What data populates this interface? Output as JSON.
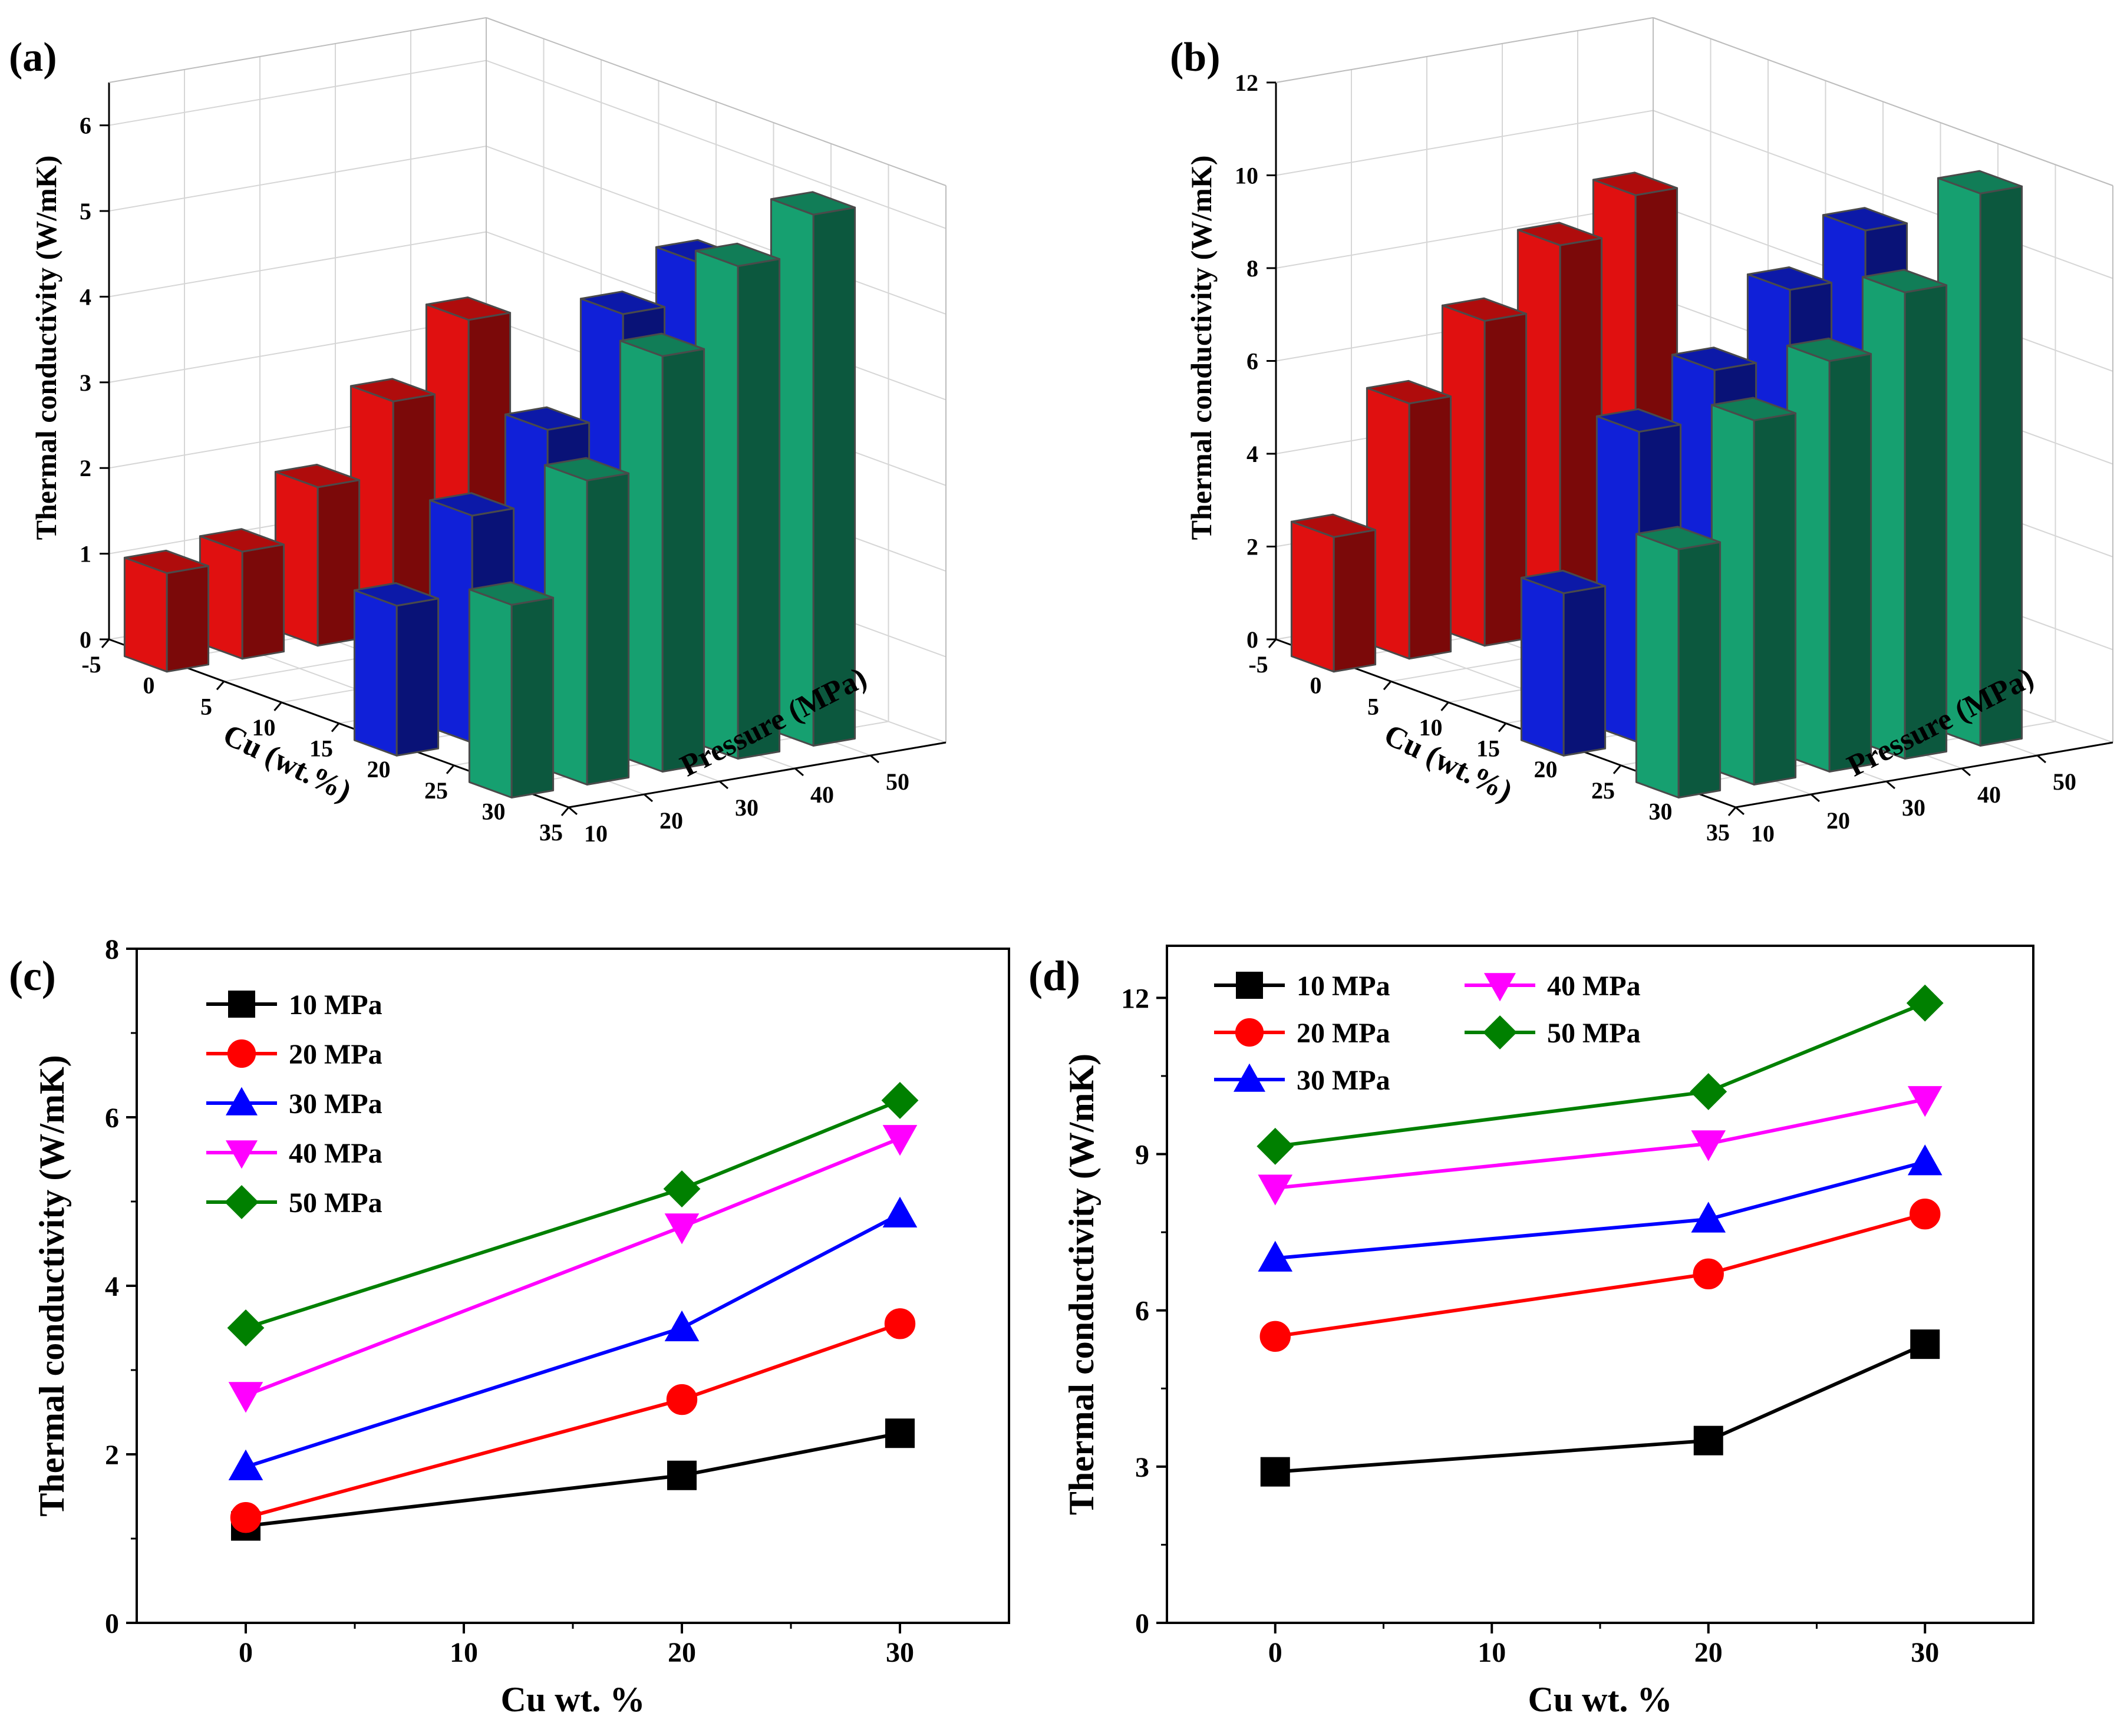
{
  "chart_data": [
    {
      "panel": "(a)",
      "type": "bar3d",
      "ylabel": "Thermal conductivity (W/mK)",
      "xlabel": "Cu (wt.%)",
      "zlabel": "Pressure (MPa)",
      "zlim": [
        0,
        6.5
      ],
      "zticks": [
        "0",
        "1",
        "2",
        "3",
        "4",
        "5",
        "6"
      ],
      "cu_ticks": [
        "-5",
        "0",
        "5",
        "10",
        "15",
        "20",
        "25",
        "30",
        "35"
      ],
      "pressure_ticks": [
        "10",
        "20",
        "30",
        "40",
        "50"
      ],
      "cu_values": [
        0,
        20,
        30
      ],
      "pressures": [
        10,
        20,
        30,
        40,
        50
      ],
      "series": [
        {
          "name": "0 wt.%",
          "cu": 0,
          "color": "#e01010",
          "values": [
            1.15,
            1.25,
            1.85,
            2.7,
            3.5
          ]
        },
        {
          "name": "20 wt.%",
          "cu": 20,
          "color": "#1020d8",
          "values": [
            1.75,
            2.65,
            3.5,
            4.7,
            5.15
          ]
        },
        {
          "name": "30 wt.%",
          "cu": 30,
          "color": "#16a070",
          "values": [
            2.25,
            3.55,
            4.85,
            5.75,
            6.2
          ]
        }
      ]
    },
    {
      "panel": "(b)",
      "type": "bar3d",
      "ylabel": "Thermal conductivity (W/mK)",
      "xlabel": "Cu (wt.%)",
      "zlabel": "Pressure (MPa)",
      "zlim": [
        0,
        12
      ],
      "zticks": [
        "0",
        "2",
        "4",
        "6",
        "8",
        "10",
        "12"
      ],
      "cu_ticks": [
        "-5",
        "0",
        "5",
        "10",
        "15",
        "20",
        "25",
        "30",
        "35"
      ],
      "pressure_ticks": [
        "10",
        "20",
        "30",
        "40",
        "50"
      ],
      "cu_values": [
        0,
        20,
        30
      ],
      "pressures": [
        10,
        20,
        30,
        40,
        50
      ],
      "series": [
        {
          "name": "0 wt.%",
          "cu": 0,
          "color": "#e01010",
          "values": [
            2.9,
            5.5,
            7.0,
            8.35,
            9.15
          ]
        },
        {
          "name": "20 wt.%",
          "cu": 20,
          "color": "#1020d8",
          "values": [
            3.5,
            6.7,
            7.75,
            9.2,
            10.2
          ]
        },
        {
          "name": "30 wt.%",
          "cu": 30,
          "color": "#16a070",
          "values": [
            5.35,
            7.85,
            8.85,
            10.05,
            11.9
          ]
        }
      ]
    },
    {
      "panel": "(c)",
      "type": "line",
      "xlabel": "Cu wt. %",
      "ylabel": "Thermal conductivity (W/mK)",
      "xlim": [
        -5,
        35
      ],
      "ylim": [
        0,
        8
      ],
      "xticks": [
        0,
        10,
        20,
        30
      ],
      "yticks": [
        0,
        2,
        4,
        6,
        8
      ],
      "x": [
        0,
        20,
        30
      ],
      "legend_columns": 1,
      "series": [
        {
          "name": "10 MPa",
          "color": "#000000",
          "marker": "square",
          "values": [
            1.15,
            1.75,
            2.25
          ]
        },
        {
          "name": "20 MPa",
          "color": "#ff0000",
          "marker": "circle",
          "values": [
            1.25,
            2.65,
            3.55
          ]
        },
        {
          "name": "30 MPa",
          "color": "#0000ff",
          "marker": "triangle",
          "values": [
            1.85,
            3.5,
            4.85
          ]
        },
        {
          "name": "40 MPa",
          "color": "#ff00ff",
          "marker": "tri-down",
          "values": [
            2.7,
            4.7,
            5.75
          ]
        },
        {
          "name": "50 MPa",
          "color": "#008000",
          "marker": "diamond",
          "values": [
            3.5,
            5.15,
            6.2
          ]
        }
      ]
    },
    {
      "panel": "(d)",
      "type": "line",
      "xlabel": "Cu wt. %",
      "ylabel": "Thermal conductivity (W/mK)",
      "xlim": [
        -5,
        35
      ],
      "ylim": [
        0,
        13
      ],
      "xticks": [
        0,
        10,
        20,
        30
      ],
      "yticks": [
        0,
        3,
        6,
        9,
        12
      ],
      "x": [
        0,
        20,
        30
      ],
      "legend_columns": 2,
      "series": [
        {
          "name": "10 MPa",
          "color": "#000000",
          "marker": "square",
          "values": [
            2.9,
            3.5,
            5.35
          ]
        },
        {
          "name": "20 MPa",
          "color": "#ff0000",
          "marker": "circle",
          "values": [
            5.5,
            6.7,
            7.85
          ]
        },
        {
          "name": "30 MPa",
          "color": "#0000ff",
          "marker": "triangle",
          "values": [
            7.0,
            7.75,
            8.85
          ]
        },
        {
          "name": "40 MPa",
          "color": "#ff00ff",
          "marker": "tri-down",
          "values": [
            8.35,
            9.2,
            10.05
          ]
        },
        {
          "name": "50 MPa",
          "color": "#008000",
          "marker": "diamond",
          "values": [
            9.15,
            10.2,
            11.9
          ]
        }
      ]
    }
  ]
}
